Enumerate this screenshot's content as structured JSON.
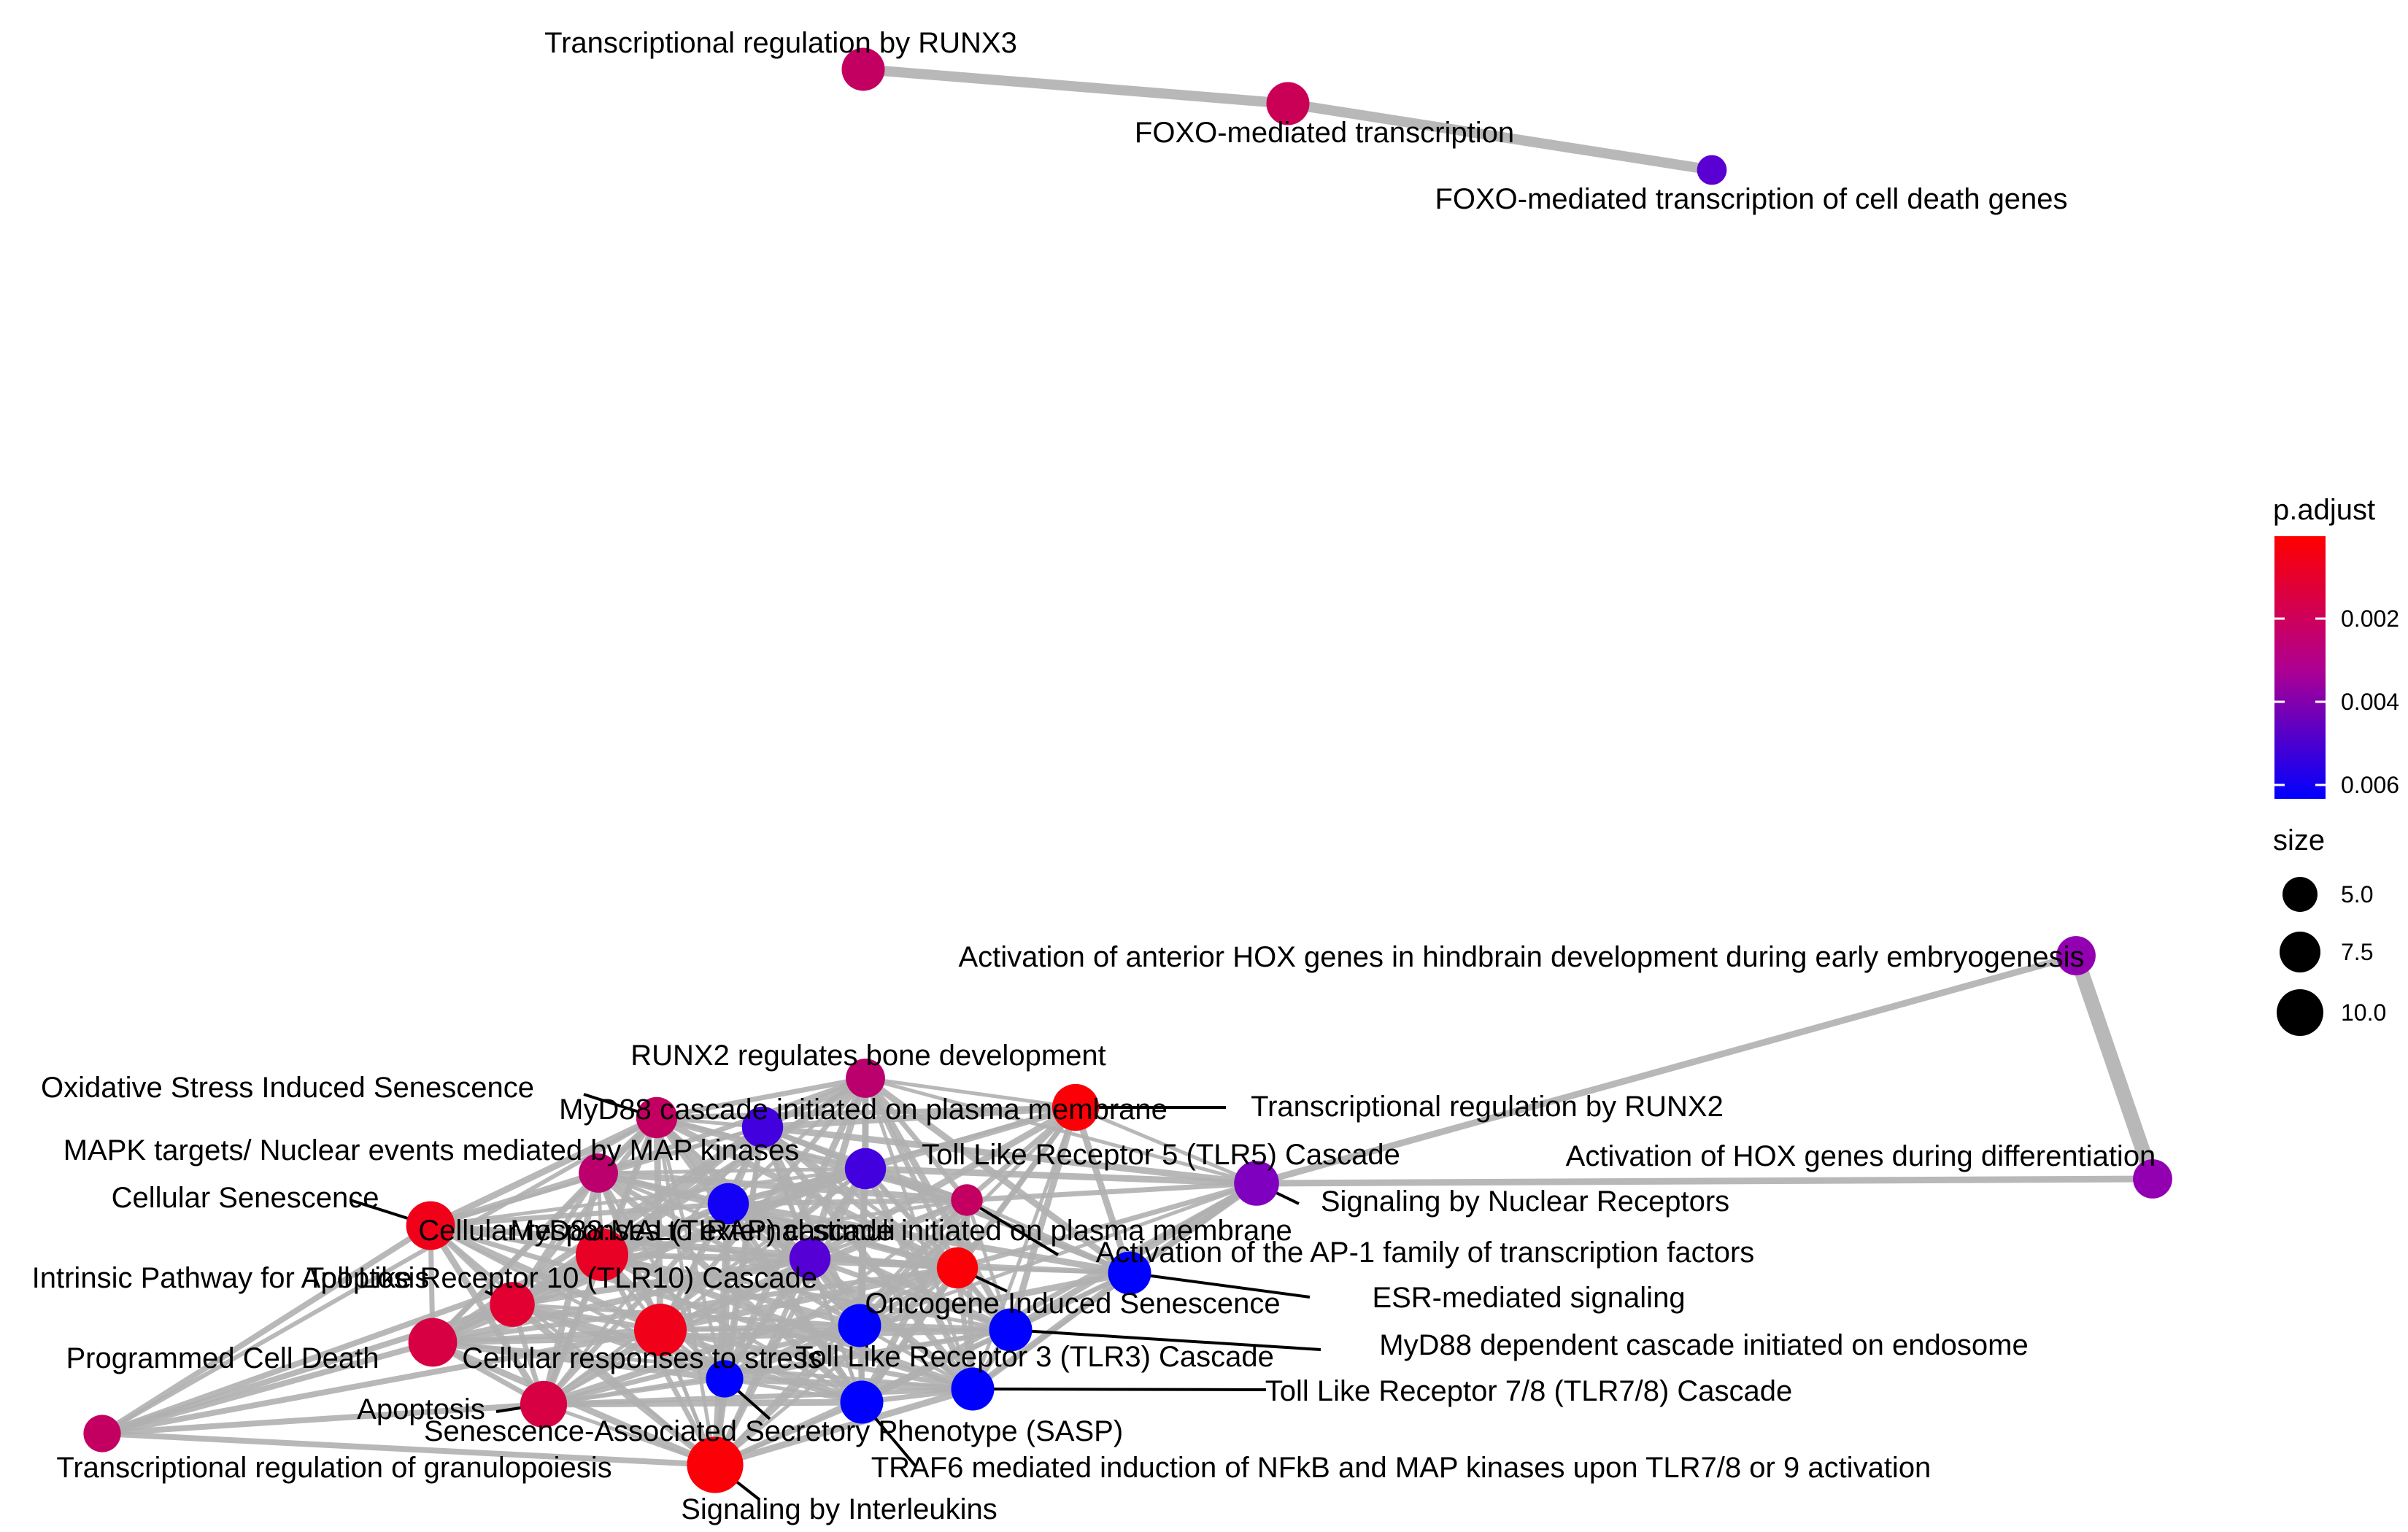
{
  "colors": {
    "edge": "#b0b0b0",
    "high": "#ff0000",
    "mid": "#8e00b8",
    "low": "#0000ff"
  },
  "nodes": [
    {
      "id": "runx3",
      "label": "Transcriptional regulation by RUNX3",
      "padj": 0.002,
      "size": 7.5
    },
    {
      "id": "foxo",
      "label": "FOXO-mediated transcription",
      "padj": 0.0018,
      "size": 7.5
    },
    {
      "id": "foxo_death",
      "label": "FOXO-mediated transcription of cell death genes",
      "padj": 0.0045,
      "size": 4.0
    },
    {
      "id": "hox_anterior",
      "label": "Activation of anterior HOX genes in hindbrain development during early embryogenesis",
      "padj": 0.0033,
      "size": 6.5
    },
    {
      "id": "hox_diff",
      "label": "Activation of HOX genes during differentiation",
      "padj": 0.0033,
      "size": 6.5
    },
    {
      "id": "runx2_bone",
      "label": "RUNX2 regulates bone development",
      "padj": 0.0022,
      "size": 6.5
    },
    {
      "id": "oxidative",
      "label": "Oxidative Stress Induced Senescence",
      "padj": 0.002,
      "size": 7.0
    },
    {
      "id": "myd88_plasma",
      "label": "MyD88 cascade initiated on plasma membrane",
      "padj": 0.005,
      "size": 7.0
    },
    {
      "id": "runx2",
      "label": "Transcriptional regulation by RUNX2",
      "padj": 0.0005,
      "size": 8.5
    },
    {
      "id": "mapk",
      "label": "MAPK targets/ Nuclear events mediated by MAP kinases",
      "padj": 0.0022,
      "size": 6.5
    },
    {
      "id": "tlr5",
      "label": "Toll Like Receptor 5 (TLR5) Cascade",
      "padj": 0.005,
      "size": 7.0
    },
    {
      "id": "nuclear_receptors",
      "label": "Signaling by Nuclear Receptors",
      "padj": 0.0037,
      "size": 8.0
    },
    {
      "id": "cellular_senescence",
      "label": "Cellular Senescence",
      "padj": 0.0008,
      "size": 9.0
    },
    {
      "id": "external_stimuli",
      "label": "Cellular responses to external stimuli",
      "padj": 0.001,
      "size": 10.0
    },
    {
      "id": "myd88_mal",
      "label": "MyD88:MAL(TIRAP) cascade initiated on plasma membrane",
      "padj": 0.006,
      "size": 7.0
    },
    {
      "id": "ap1",
      "label": "Activation of the AP-1 family of transcription factors",
      "padj": 0.002,
      "size": 4.5
    },
    {
      "id": "tlr10",
      "label": "Toll Like Receptor 10 (TLR10) Cascade",
      "padj": 0.0046,
      "size": 7.0
    },
    {
      "id": "intrinsic",
      "label": "Intrinsic Pathway for Apoptosis",
      "padj": 0.0012,
      "size": 8.0
    },
    {
      "id": "oncogene",
      "label": "Oncogene Induced Senescence",
      "padj": 0.0005,
      "size": 7.0
    },
    {
      "id": "esr",
      "label": "ESR-mediated signaling",
      "padj": 0.0064,
      "size": 7.5
    },
    {
      "id": "programmed",
      "label": "Programmed Cell Death",
      "padj": 0.0015,
      "size": 9.0
    },
    {
      "id": "stress",
      "label": "Cellular responses to stress",
      "padj": 0.0008,
      "size": 10.0
    },
    {
      "id": "myd88_endo",
      "label": "MyD88 dependent cascade initiated on endosome",
      "padj": 0.0064,
      "size": 7.5
    },
    {
      "id": "tlr3",
      "label": "Toll Like Receptor 3 (TLR3) Cascade",
      "padj": 0.0064,
      "size": 7.5
    },
    {
      "id": "apoptosis",
      "label": "Apoptosis",
      "padj": 0.0015,
      "size": 8.5
    },
    {
      "id": "sasp",
      "label": "Senescence-Associated Secretory Phenotype (SASP)",
      "padj": 0.0064,
      "size": 6.0
    },
    {
      "id": "tlr78",
      "label": "Toll Like Receptor 7/8 (TLR7/8) Cascade",
      "padj": 0.0064,
      "size": 7.5
    },
    {
      "id": "traf6",
      "label": "TRAF6 mediated induction of NFkB and MAP kinases upon TLR7/8 or 9 activation",
      "padj": 0.0064,
      "size": 7.5
    },
    {
      "id": "granulopoiesis",
      "label": "Transcriptional regulation of granulopoiesis",
      "padj": 0.002,
      "size": 6.0
    },
    {
      "id": "interleukins",
      "label": "Signaling by Interleukins",
      "padj": 0.0005,
      "size": 11.0
    }
  ],
  "legend": {
    "color_title": "p.adjust",
    "color_ticks": [
      "0.002",
      "0.004",
      "0.006"
    ],
    "size_title": "size",
    "size_ticks": [
      "5.0",
      "7.5",
      "10.0"
    ]
  }
}
